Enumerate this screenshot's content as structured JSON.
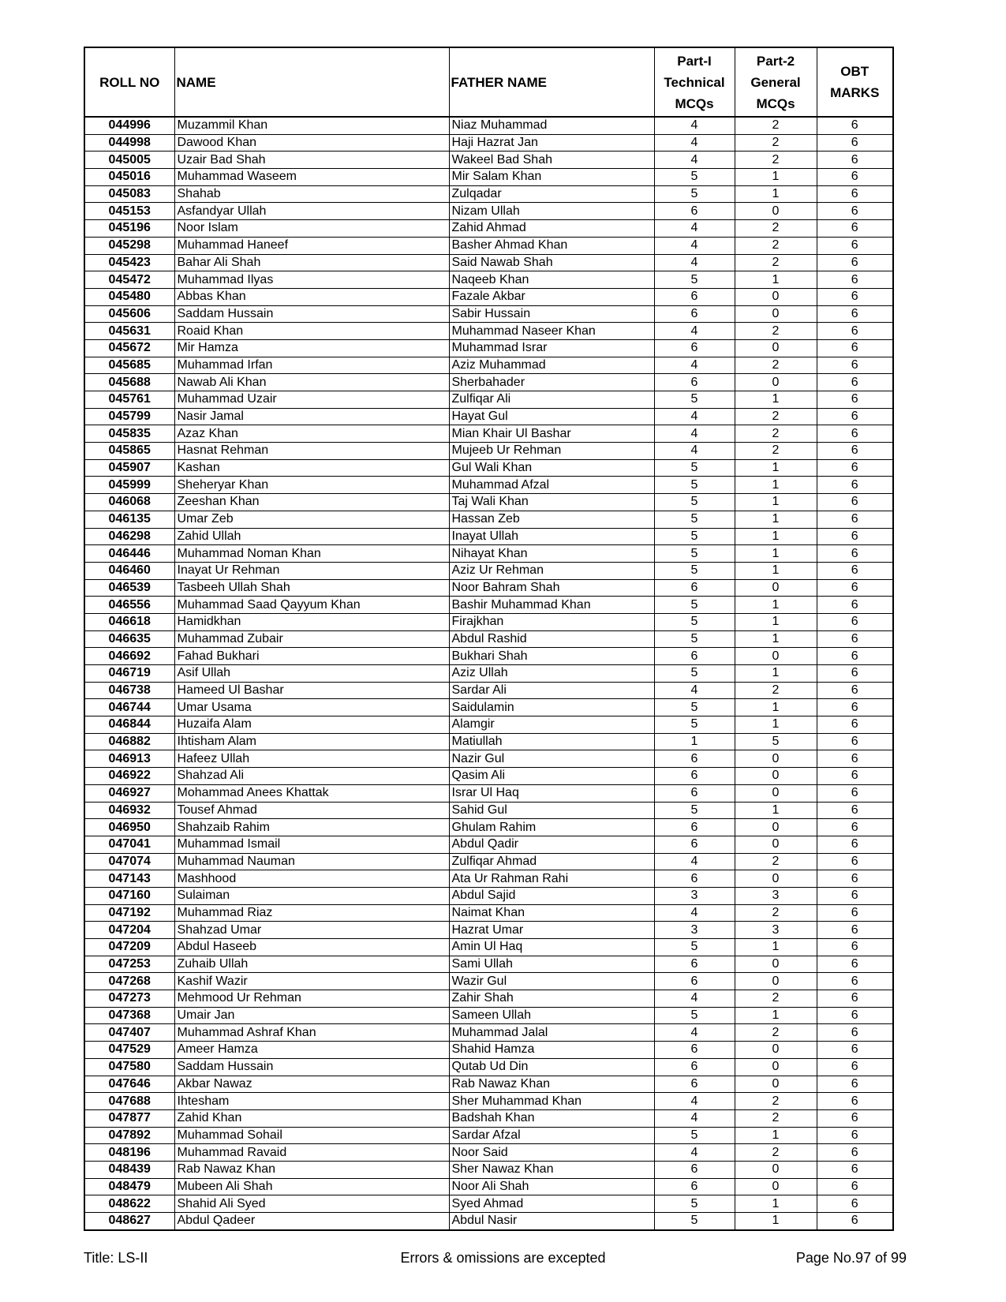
{
  "table": {
    "header": [
      "ROLL NO",
      "NAME",
      "FATHER NAME",
      "Part-I\nTechnical\nMCQs",
      "Part-2\nGeneral\nMCQs",
      "OBT\nMARKS"
    ],
    "rows": [
      [
        "044996",
        "Muzammil Khan",
        "Niaz Muhammad",
        4,
        2,
        6
      ],
      [
        "044998",
        "Dawood Khan",
        "Haji Hazrat Jan",
        4,
        2,
        6
      ],
      [
        "045005",
        "Uzair Bad Shah",
        "Wakeel Bad Shah",
        4,
        2,
        6
      ],
      [
        "045016",
        "Muhammad Waseem",
        "Mir Salam Khan",
        5,
        1,
        6
      ],
      [
        "045083",
        "Shahab",
        "Zulqadar",
        5,
        1,
        6
      ],
      [
        "045153",
        "Asfandyar Ullah",
        "Nizam Ullah",
        6,
        0,
        6
      ],
      [
        "045196",
        "Noor Islam",
        "Zahid Ahmad",
        4,
        2,
        6
      ],
      [
        "045298",
        "Muhammad Haneef",
        "Basher Ahmad Khan",
        4,
        2,
        6
      ],
      [
        "045423",
        "Bahar Ali Shah",
        "Said Nawab Shah",
        4,
        2,
        6
      ],
      [
        "045472",
        "Muhammad Ilyas",
        "Naqeeb Khan",
        5,
        1,
        6
      ],
      [
        "045480",
        "Abbas Khan",
        "Fazale Akbar",
        6,
        0,
        6
      ],
      [
        "045606",
        "Saddam Hussain",
        "Sabir Hussain",
        6,
        0,
        6
      ],
      [
        "045631",
        "Roaid Khan",
        "Muhammad Naseer Khan",
        4,
        2,
        6
      ],
      [
        "045672",
        "Mir Hamza",
        "Muhammad Israr",
        6,
        0,
        6
      ],
      [
        "045685",
        "Muhammad Irfan",
        "Aziz Muhammad",
        4,
        2,
        6
      ],
      [
        "045688",
        "Nawab Ali Khan",
        "Sherbahader",
        6,
        0,
        6
      ],
      [
        "045761",
        "Muhammad Uzair",
        "Zulfiqar Ali",
        5,
        1,
        6
      ],
      [
        "045799",
        "Nasir Jamal",
        "Hayat Gul",
        4,
        2,
        6
      ],
      [
        "045835",
        "Azaz Khan",
        "Mian Khair Ul Bashar",
        4,
        2,
        6
      ],
      [
        "045865",
        "Hasnat Rehman",
        "Mujeeb Ur Rehman",
        4,
        2,
        6
      ],
      [
        "045907",
        "Kashan",
        "Gul Wali Khan",
        5,
        1,
        6
      ],
      [
        "045999",
        "Sheheryar Khan",
        "Muhammad Afzal",
        5,
        1,
        6
      ],
      [
        "046068",
        "Zeeshan Khan",
        "Taj Wali Khan",
        5,
        1,
        6
      ],
      [
        "046135",
        "Umar Zeb",
        "Hassan Zeb",
        5,
        1,
        6
      ],
      [
        "046298",
        "Zahid Ullah",
        "Inayat Ullah",
        5,
        1,
        6
      ],
      [
        "046446",
        "Muhammad Noman Khan",
        "Nihayat Khan",
        5,
        1,
        6
      ],
      [
        "046460",
        "Inayat Ur Rehman",
        "Aziz Ur Rehman",
        5,
        1,
        6
      ],
      [
        "046539",
        "Tasbeeh Ullah Shah",
        "Noor Bahram Shah",
        6,
        0,
        6
      ],
      [
        "046556",
        "Muhammad Saad Qayyum Khan",
        "Bashir Muhammad Khan",
        5,
        1,
        6
      ],
      [
        "046618",
        "Hamidkhan",
        "Firajkhan",
        5,
        1,
        6
      ],
      [
        "046635",
        "Muhammad Zubair",
        "Abdul Rashid",
        5,
        1,
        6
      ],
      [
        "046692",
        "Fahad Bukhari",
        "Bukhari Shah",
        6,
        0,
        6
      ],
      [
        "046719",
        "Asif Ullah",
        "Aziz Ullah",
        5,
        1,
        6
      ],
      [
        "046738",
        "Hameed Ul Bashar",
        "Sardar Ali",
        4,
        2,
        6
      ],
      [
        "046744",
        "Umar Usama",
        "Saidulamin",
        5,
        1,
        6
      ],
      [
        "046844",
        "Huzaifa  Alam",
        "Alamgir",
        5,
        1,
        6
      ],
      [
        "046882",
        "Ihtisham Alam",
        "Matiullah",
        1,
        5,
        6
      ],
      [
        "046913",
        "Hafeez Ullah",
        "Nazir Gul",
        6,
        0,
        6
      ],
      [
        "046922",
        "Shahzad Ali",
        "Qasim Ali",
        6,
        0,
        6
      ],
      [
        "046927",
        "Mohammad Anees Khattak",
        "Israr Ul Haq",
        6,
        0,
        6
      ],
      [
        "046932",
        "Tousef Ahmad",
        "Sahid Gul",
        5,
        1,
        6
      ],
      [
        "046950",
        "Shahzaib Rahim",
        "Ghulam Rahim",
        6,
        0,
        6
      ],
      [
        "047041",
        "Muhammad Ismail",
        "Abdul Qadir",
        6,
        0,
        6
      ],
      [
        "047074",
        "Muhammad Nauman",
        "Zulfiqar Ahmad",
        4,
        2,
        6
      ],
      [
        "047143",
        "Mashhood",
        "Ata Ur Rahman Rahi",
        6,
        0,
        6
      ],
      [
        "047160",
        "Sulaiman",
        "Abdul Sajid",
        3,
        3,
        6
      ],
      [
        "047192",
        "Muhammad Riaz",
        "Naimat Khan",
        4,
        2,
        6
      ],
      [
        "047204",
        "Shahzad Umar",
        "Hazrat Umar",
        3,
        3,
        6
      ],
      [
        "047209",
        "Abdul Haseeb",
        "Amin Ul Haq",
        5,
        1,
        6
      ],
      [
        "047253",
        "Zuhaib Ullah",
        "Sami Ullah",
        6,
        0,
        6
      ],
      [
        "047268",
        "Kashif Wazir",
        "Wazir Gul",
        6,
        0,
        6
      ],
      [
        "047273",
        "Mehmood Ur Rehman",
        "Zahir Shah",
        4,
        2,
        6
      ],
      [
        "047368",
        "Umair Jan",
        "Sameen Ullah",
        5,
        1,
        6
      ],
      [
        "047407",
        "Muhammad Ashraf Khan",
        "Muhammad Jalal",
        4,
        2,
        6
      ],
      [
        "047529",
        "Ameer Hamza",
        "Shahid Hamza",
        6,
        0,
        6
      ],
      [
        "047580",
        "Saddam Hussain",
        "Qutab Ud Din",
        6,
        0,
        6
      ],
      [
        "047646",
        "Akbar Nawaz",
        "Rab Nawaz Khan",
        6,
        0,
        6
      ],
      [
        "047688",
        "Ihtesham",
        "Sher Muhammad Khan",
        4,
        2,
        6
      ],
      [
        "047877",
        "Zahid Khan",
        "Badshah Khan",
        4,
        2,
        6
      ],
      [
        "047892",
        "Muhammad Sohail",
        "Sardar Afzal",
        5,
        1,
        6
      ],
      [
        "048196",
        "Muhammad Ravaid",
        "Noor Said",
        4,
        2,
        6
      ],
      [
        "048439",
        "Rab Nawaz Khan",
        "Sher Nawaz Khan",
        6,
        0,
        6
      ],
      [
        "048479",
        "Mubeen Ali Shah",
        "Noor Ali Shah",
        6,
        0,
        6
      ],
      [
        "048622",
        "Shahid Ali Syed",
        "Syed Ahmad",
        5,
        1,
        6
      ],
      [
        "048627",
        "Abdul Qadeer",
        "Abdul Nasir",
        5,
        1,
        6
      ]
    ]
  },
  "footer": {
    "left": "Title: LS-II",
    "center": "Errors & omissions are excepted",
    "right": "Page No.97 of 99"
  }
}
